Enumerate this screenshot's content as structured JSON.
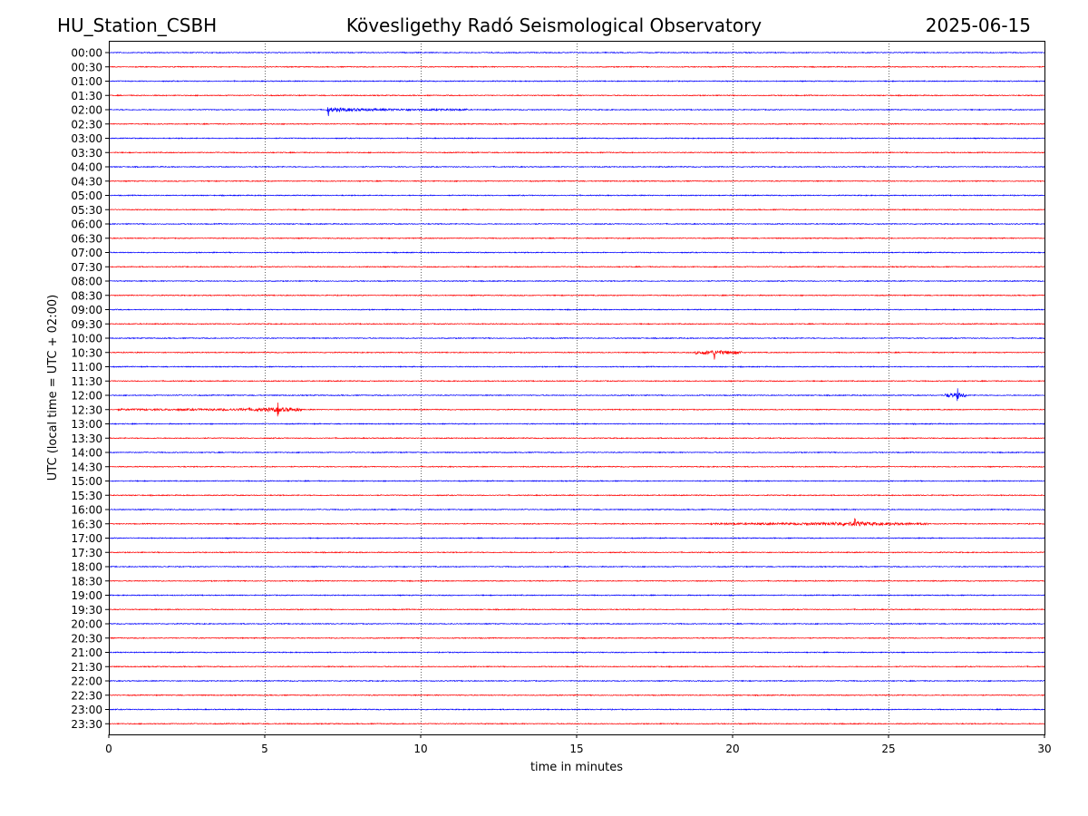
{
  "header": {
    "station": "HU_Station_CSBH",
    "title": "Kövesligethy Radó Seismological Observatory",
    "date": "2025-06-15"
  },
  "chart_data": {
    "type": "line",
    "title": "Kövesligethy Radó Seismological Observatory",
    "xlabel": "time in minutes",
    "ylabel": "UTC (local time = UTC + 02:00)",
    "xlim": [
      0,
      30
    ],
    "x_ticks": [
      0,
      5,
      10,
      15,
      20,
      25,
      30
    ],
    "x_grid": true,
    "row_labels": [
      "00:00",
      "00:30",
      "01:00",
      "01:30",
      "02:00",
      "02:30",
      "03:00",
      "03:30",
      "04:00",
      "04:30",
      "05:00",
      "05:30",
      "06:00",
      "06:30",
      "07:00",
      "07:30",
      "08:00",
      "08:30",
      "09:00",
      "09:30",
      "10:00",
      "10:30",
      "11:00",
      "11:30",
      "12:00",
      "12:30",
      "13:00",
      "13:30",
      "14:00",
      "14:30",
      "15:00",
      "15:30",
      "16:00",
      "16:30",
      "17:00",
      "17:30",
      "18:00",
      "18:30",
      "19:00",
      "19:30",
      "20:00",
      "20:30",
      "21:00",
      "21:30",
      "22:00",
      "22:30",
      "23:00",
      "23:30"
    ],
    "trace_colors": [
      "#0000ff",
      "#ff0000"
    ],
    "events": [
      {
        "row": "02:00",
        "start_min": 7.0,
        "end_min": 11.5,
        "peak_min": 7.0
      },
      {
        "row": "12:30",
        "start_min": 0.3,
        "end_min": 6.2,
        "peak_min": 5.4
      },
      {
        "row": "10:30",
        "start_min": 18.8,
        "end_min": 20.3,
        "peak_min": 19.4
      },
      {
        "row": "16:30",
        "start_min": 19.3,
        "end_min": 26.3,
        "peak_min": 23.9
      },
      {
        "row": "12:00",
        "start_min": 26.8,
        "end_min": 27.5,
        "peak_min": 27.2
      }
    ]
  }
}
